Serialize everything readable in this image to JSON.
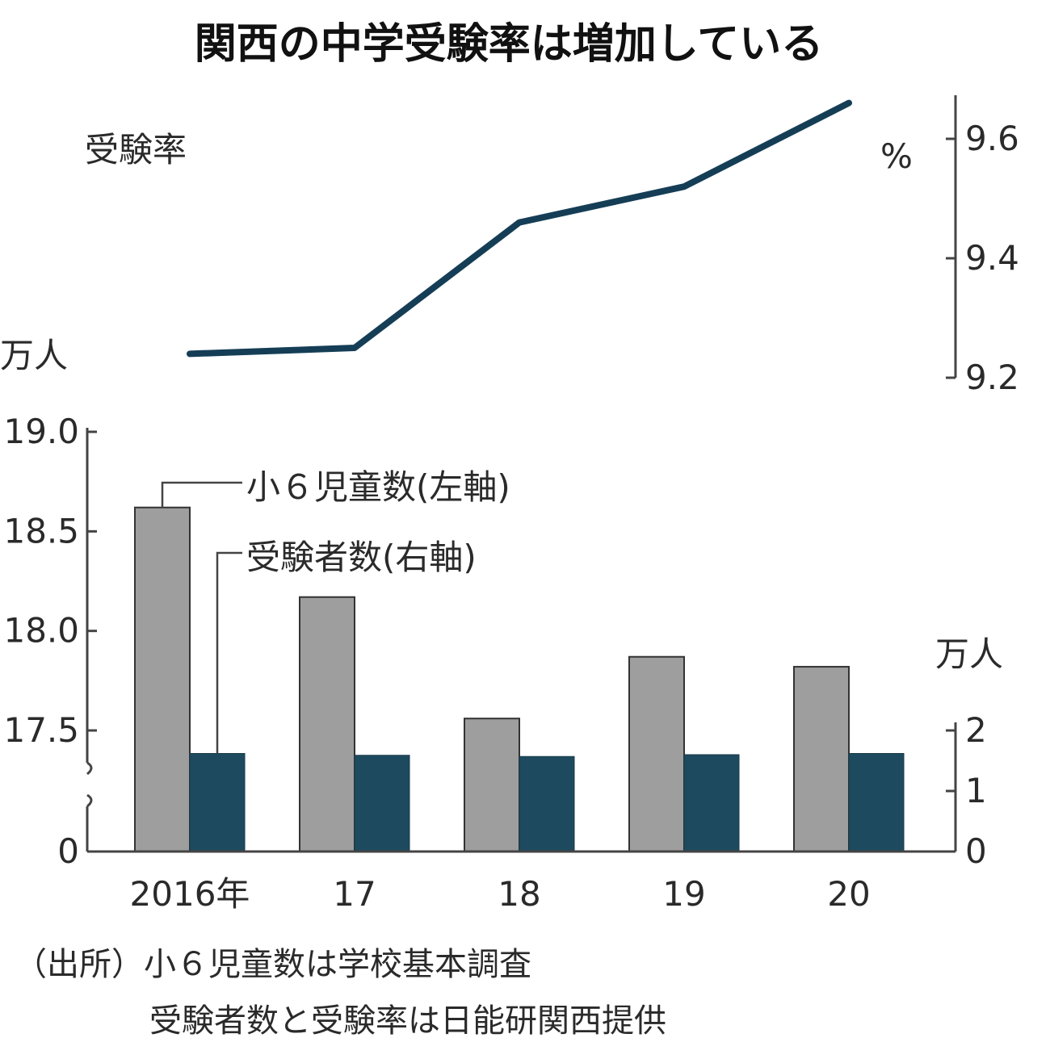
{
  "chart_data": {
    "type": "bar",
    "title": "関西の中学受験率は増加している",
    "categories": [
      "2016年",
      "17",
      "18",
      "19",
      "20"
    ],
    "line_label": "受験率",
    "line_unit": "%",
    "line_axis": {
      "ticks": [
        "9.6",
        "9.4",
        "9.2"
      ],
      "tick_values": [
        9.6,
        9.4,
        9.2
      ],
      "range": [
        9.2,
        9.6
      ]
    },
    "line_values": [
      9.24,
      9.25,
      9.46,
      9.52,
      9.66
    ],
    "left_axis": {
      "unit": "万人",
      "ticks": [
        "19.0",
        "18.5",
        "18.0",
        "17.5",
        "0"
      ],
      "tick_values": [
        19.0,
        18.5,
        18.0,
        17.5,
        0
      ],
      "range": [
        17.2,
        19.0
      ],
      "broken": true
    },
    "right_axis": {
      "unit": "万人",
      "ticks": [
        "2",
        "1",
        "0"
      ],
      "tick_values": [
        2,
        1,
        0
      ],
      "range": [
        0,
        2
      ]
    },
    "series": [
      {
        "name": "小６児童数(左軸)",
        "axis": "left",
        "color": "#9e9e9e",
        "values": [
          18.62,
          18.17,
          17.56,
          17.87,
          17.82
        ]
      },
      {
        "name": "受験者数(右軸)",
        "axis": "right",
        "color": "#1d4a5e",
        "values": [
          1.62,
          1.59,
          1.57,
          1.6,
          1.62
        ]
      }
    ],
    "line_color": "#153e56",
    "source_lines": [
      "（出所）小６児童数は学校基本調査",
      "受験者数と受験率は日能研関西提供"
    ]
  }
}
